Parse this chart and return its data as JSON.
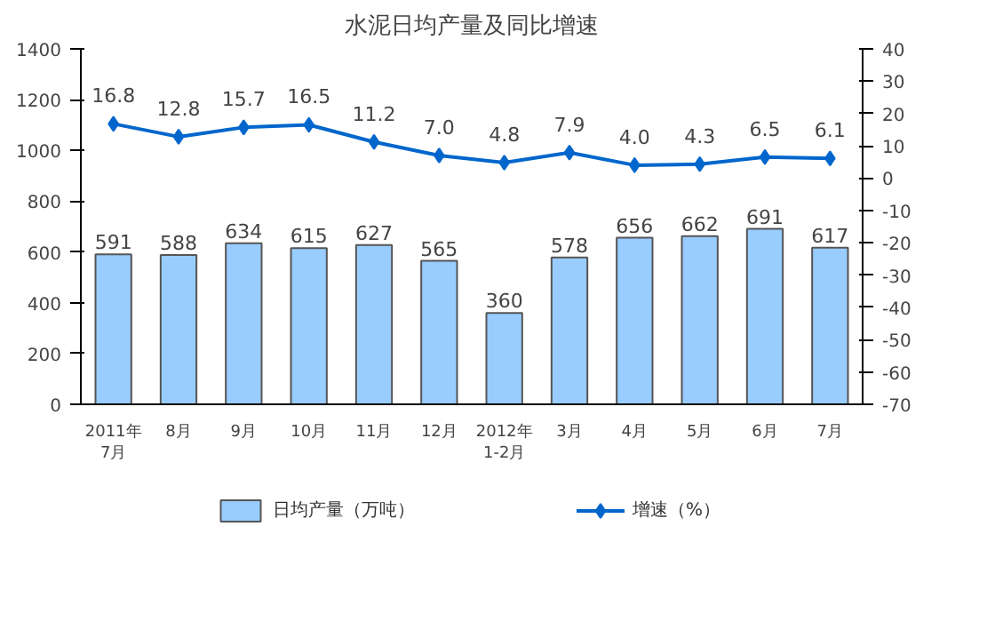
{
  "chart_data": {
    "type": "bar",
    "title": "水泥日均产量及同比增速",
    "categories": [
      "2011年\n7月",
      "8月",
      "9月",
      "10月",
      "11月",
      "12月",
      "2012年\n1-2月",
      "3月",
      "4月",
      "5月",
      "6月",
      "7月"
    ],
    "series": [
      {
        "name": "日均产量（万吨）",
        "color": "#99ccff",
        "values": [
          591,
          588,
          634,
          615,
          627,
          565,
          360,
          578,
          656,
          662,
          691,
          617
        ],
        "value_labels": [
          "591",
          "588",
          "634",
          "615",
          "627",
          "565",
          "360",
          "578",
          "656",
          "662",
          "691",
          "617"
        ]
      },
      {
        "name": "增速（%）",
        "type": "line",
        "axis": "y2",
        "color": "#0066cc",
        "values": [
          16.8,
          12.8,
          15.7,
          16.5,
          11.2,
          7.0,
          4.8,
          7.9,
          4.0,
          4.3,
          6.5,
          6.1
        ],
        "value_labels": [
          "16.8",
          "12.8",
          "15.7",
          "16.5",
          "11.2",
          "7.0",
          "4.8",
          "7.9",
          "4.0",
          "4.3",
          "6.5",
          "6.1"
        ]
      }
    ],
    "ylim": [
      0,
      1400
    ],
    "yticks": [
      0,
      200,
      400,
      600,
      800,
      1000,
      1200,
      1400
    ],
    "y2lim": [
      -70,
      40
    ],
    "y2ticks": [
      -70,
      -60,
      -50,
      -40,
      -30,
      -20,
      -10,
      0,
      10,
      20,
      30,
      40
    ],
    "grid": false,
    "legend": "bottom",
    "marker": "diamond",
    "line_style": "solid"
  }
}
